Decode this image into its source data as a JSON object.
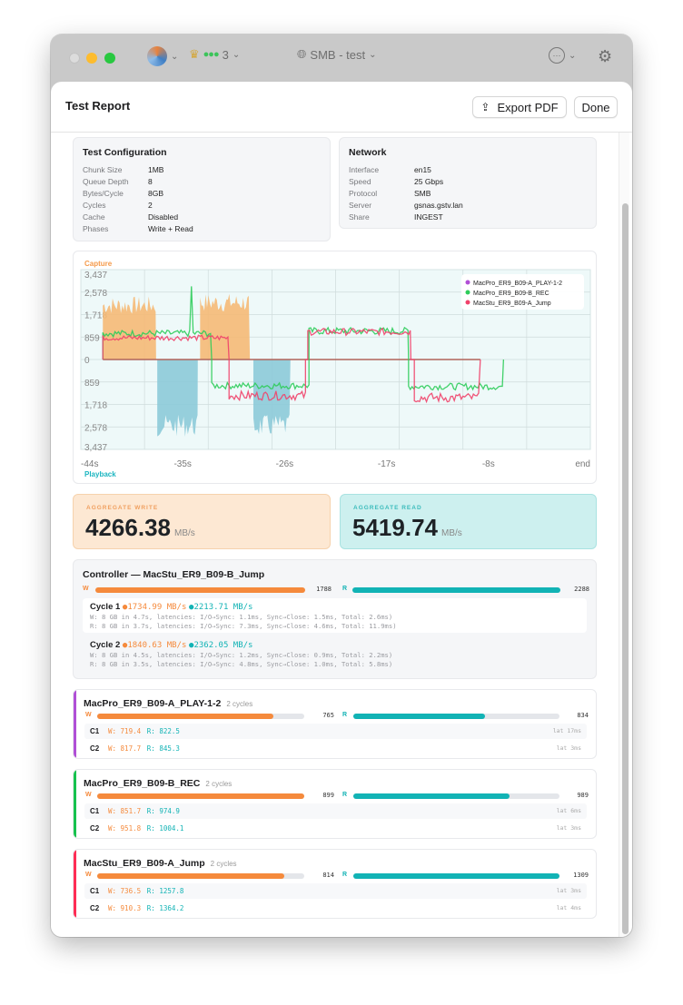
{
  "toolbar": {
    "connections_count": "3",
    "server_menu": "SMB - test"
  },
  "header": {
    "title": "Test Report",
    "export_label": "Export PDF",
    "done_label": "Done"
  },
  "config": {
    "title": "Test Configuration",
    "rows": [
      [
        "Chunk Size",
        "1MB"
      ],
      [
        "Queue Depth",
        "8"
      ],
      [
        "Bytes/Cycle",
        "8GB"
      ],
      [
        "Cycles",
        "2"
      ],
      [
        "Cache",
        "Disabled"
      ],
      [
        "Phases",
        "Write + Read"
      ]
    ]
  },
  "network": {
    "title": "Network",
    "rows": [
      [
        "Interface",
        "en15"
      ],
      [
        "Speed",
        "25 Gbps"
      ],
      [
        "Protocol",
        "SMB"
      ],
      [
        "Server",
        "gsnas.gstv.lan"
      ],
      [
        "Share",
        "INGEST"
      ]
    ]
  },
  "chart_data": {
    "type": "line",
    "top_label": "Capture",
    "bottom_label": "Playback",
    "y_ticks": [
      "3,437",
      "2,578",
      "1,718",
      "859",
      "0",
      "859",
      "1,718",
      "2,578",
      "3,437"
    ],
    "ylim": [
      -3437,
      3437
    ],
    "x_ticks": [
      "-44s",
      "-35s",
      "-26s",
      "-17s",
      "-8s",
      "end"
    ],
    "xlim": [
      -44,
      0
    ],
    "grid": true,
    "legend": "top-right",
    "areas": [
      {
        "name": "Capture",
        "color": "#f5b976",
        "segments": [
          [
            -42.1,
            -37.5,
            2000
          ],
          [
            -33.7,
            -29.4,
            2100
          ]
        ]
      },
      {
        "name": "Playback",
        "color": "#8ccad8",
        "segments": [
          [
            -37.4,
            -33.9,
            -2450
          ],
          [
            -29.1,
            -25.9,
            -2450
          ]
        ]
      }
    ],
    "series": [
      {
        "name": "MacPro_ER9_B09-A_PLAY-1-2",
        "color": "#b04fd6",
        "segments": []
      },
      {
        "name": "MacPro_ER9_B09-B_REC",
        "color": "#2ecc5a",
        "segments": [
          [
            -42.1,
            -32.7,
            1000
          ],
          [
            -32.7,
            -24.3,
            -1000
          ],
          [
            -24.3,
            -15.7,
            1090
          ],
          [
            -15.7,
            -7.5,
            -1030
          ]
        ],
        "spike": [
          -34.5,
          2800
        ]
      },
      {
        "name": "MacStu_ER9_B09-A_Jump",
        "color": "#f0426a",
        "segments": [
          [
            -42.1,
            -31.2,
            830
          ],
          [
            -31.2,
            -24.6,
            -1380
          ],
          [
            -24.4,
            -15.5,
            1060
          ],
          [
            -15.2,
            -9.5,
            -1460
          ]
        ]
      }
    ]
  },
  "aggregate": {
    "write_label": "AGGREGATE WRITE",
    "write_value": "4266.38",
    "read_label": "AGGREGATE READ",
    "read_value": "5419.74",
    "unit": "MB/s"
  },
  "controller": {
    "title": "Controller — MacStu_ER9_B09-B_Jump",
    "w_label": "W",
    "r_label": "R",
    "write": "1788",
    "read": "2288",
    "cycles": [
      {
        "label": "Cycle 1",
        "write": "1734.99 MB/s",
        "read": "2213.71 MB/s",
        "w_detail": "W: 8 GB in 4.7s, latencies: I/O→Sync: 1.1ms, Sync→Close: 1.5ms, Total: 2.6ms)",
        "r_detail": "R: 8 GB in 3.7s, latencies: I/O→Sync: 7.3ms, Sync→Close: 4.6ms, Total: 11.9ms)"
      },
      {
        "label": "Cycle 2",
        "write": "1840.63 MB/s",
        "read": "2362.05 MB/s",
        "w_detail": "W: 8 GB in 4.5s, latencies: I/O→Sync: 1.2ms, Sync→Close: 0.9ms, Total: 2.2ms)",
        "r_detail": "R: 8 GB in 3.5s, latencies: I/O→Sync: 4.8ms, Sync→Close: 1.0ms, Total: 5.8ms)"
      }
    ]
  },
  "clients": [
    {
      "name": "MacPro_ER9_B09-A_PLAY-1-2",
      "cycles_label": "2 cycles",
      "color": "#b04fd6",
      "write": "765",
      "read": "834",
      "write_frac": 0.851,
      "read_frac": 0.637,
      "rows": [
        {
          "c": "C1",
          "w": "W: 719.4",
          "r": "R: 822.5",
          "lat": "lat 17ms"
        },
        {
          "c": "C2",
          "w": "W: 817.7",
          "r": "R: 845.3",
          "lat": "lat 3ms"
        }
      ]
    },
    {
      "name": "MacPro_ER9_B09-B_REC",
      "cycles_label": "2 cycles",
      "color": "#17c24e",
      "write": "899",
      "read": "989",
      "write_frac": 1.0,
      "read_frac": 0.756,
      "rows": [
        {
          "c": "C1",
          "w": "W: 851.7",
          "r": "R: 974.9",
          "lat": "lat 6ms"
        },
        {
          "c": "C2",
          "w": "W: 951.8",
          "r": "R: 1004.1",
          "lat": "lat 3ms"
        }
      ]
    },
    {
      "name": "MacStu_ER9_B09-A_Jump",
      "cycles_label": "2 cycles",
      "color": "#ff2d55",
      "write": "814",
      "read": "1309",
      "write_frac": 0.905,
      "read_frac": 1.0,
      "rows": [
        {
          "c": "C1",
          "w": "W: 736.5",
          "r": "R: 1257.8",
          "lat": "lat 3ms"
        },
        {
          "c": "C2",
          "w": "W: 910.3",
          "r": "R: 1364.2",
          "lat": "lat 4ms"
        }
      ]
    }
  ],
  "colors": {
    "write": "#f58a3c",
    "read": "#12b3b5"
  }
}
